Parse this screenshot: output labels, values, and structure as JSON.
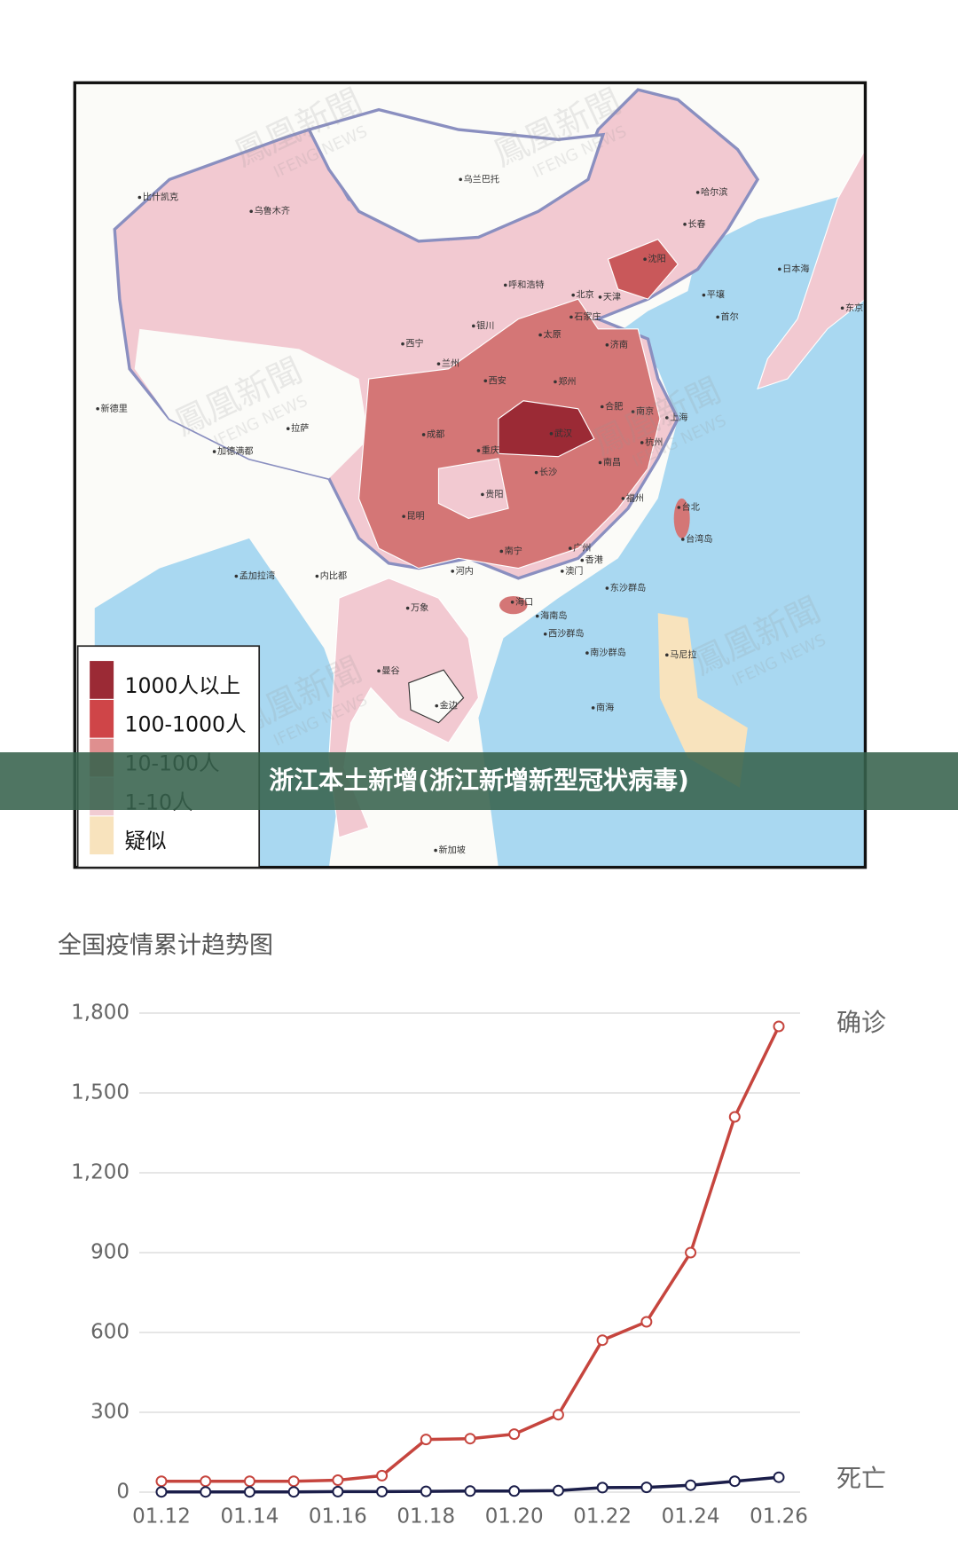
{
  "map": {
    "watermark": [
      "鳳凰新聞",
      "IFENG NEWS"
    ],
    "places": [
      "乌鲁木齐",
      "乌兰巴托",
      "哈尔滨",
      "长春",
      "沈阳",
      "呼和浩特",
      "北京",
      "天津",
      "石家庄",
      "太原",
      "银川",
      "西宁",
      "兰州",
      "西安",
      "郑州",
      "济南",
      "合肥",
      "南京",
      "上海",
      "杭州",
      "武汉",
      "成都",
      "重庆",
      "拉萨",
      "长沙",
      "南昌",
      "福州",
      "贵阳",
      "昆明",
      "南宁",
      "广州",
      "香港",
      "澳门",
      "台北",
      "海口",
      "河内",
      "平壤",
      "首尔",
      "东京",
      "曼谷",
      "金边",
      "新加坡",
      "马尼拉",
      "万象",
      "比什凯克",
      "新德里",
      "加德满都",
      "内比都",
      "台湾岛",
      "东沙群岛",
      "海南岛",
      "西沙群岛",
      "南沙群岛",
      "日本海",
      "孟加拉湾",
      "南海"
    ],
    "legend": [
      {
        "label": "1000人以上",
        "color": "#9b2a35"
      },
      {
        "label": "100-1000人",
        "color": "#cf4548"
      },
      {
        "label": "10-100人",
        "color": "#df8f8f"
      },
      {
        "label": "1-10人",
        "color": "#f1ccd2"
      },
      {
        "label": "疑似",
        "color": "#f8e3bd"
      }
    ]
  },
  "banner": {
    "title": "浙江本土新增(浙江新增新型冠状病毒)"
  },
  "chart_data": {
    "type": "line",
    "title": "全国疫情累计趋势图",
    "categories": [
      "01.12",
      null,
      "01.14",
      null,
      "01.16",
      null,
      "01.18",
      null,
      "01.20",
      null,
      "01.22",
      null,
      "01.24",
      null,
      "01.26"
    ],
    "series": [
      {
        "name": "确诊",
        "color": "#c6453e",
        "values": [
          41,
          41,
          41,
          41,
          45,
          62,
          198,
          201,
          218,
          291,
          571,
          640,
          900,
          1410,
          1750
        ]
      },
      {
        "name": "死亡",
        "color": "#1b1e4a",
        "values": [
          1,
          1,
          1,
          1,
          2,
          2,
          3,
          4,
          4,
          6,
          17,
          18,
          26,
          41,
          56
        ]
      }
    ],
    "ylim": [
      0,
      1800
    ],
    "yticks": [
      0,
      300,
      600,
      900,
      {
        "value": 1200,
        "label": "1,200"
      },
      {
        "value": 1500,
        "label": "1,500"
      },
      {
        "value": 1800,
        "label": "1,800"
      }
    ],
    "grid": true
  }
}
